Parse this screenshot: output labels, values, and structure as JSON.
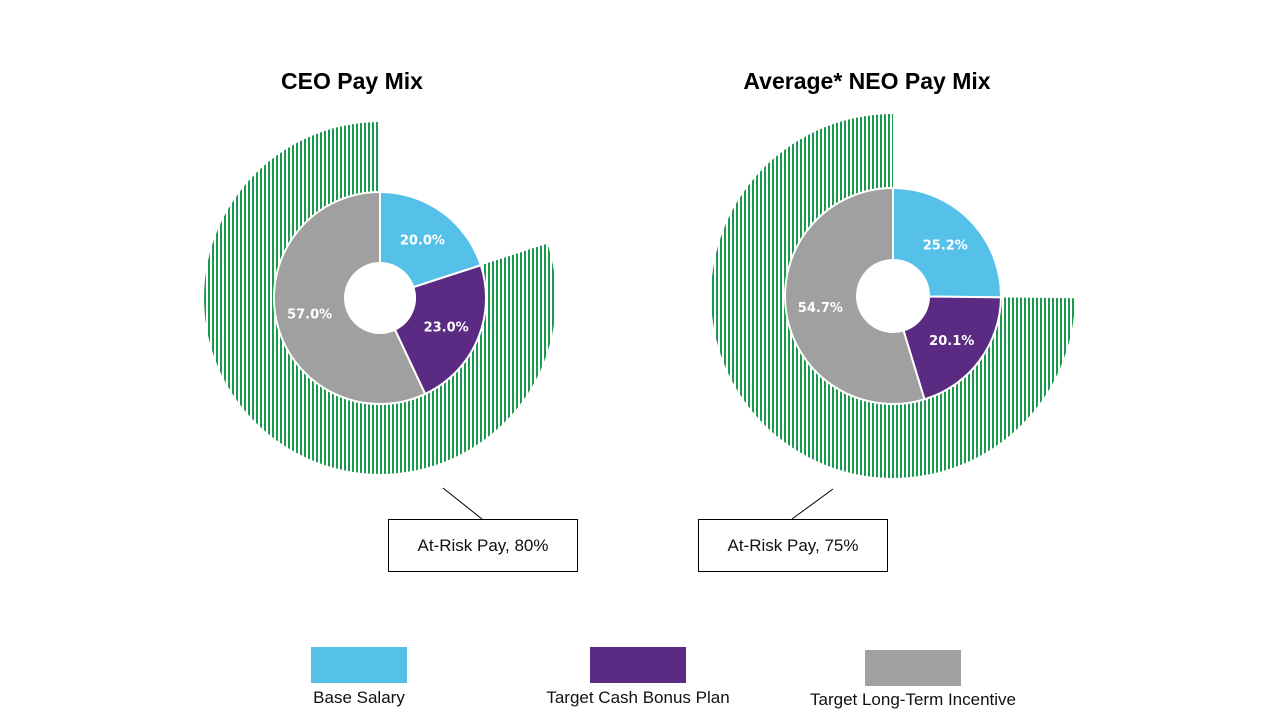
{
  "chart_data": [
    {
      "type": "pie",
      "title": "CEO Pay Mix",
      "categories": [
        "Base Salary",
        "Target Cash Bonus Plan",
        "Target Long-Term Incentive"
      ],
      "values": [
        20.0,
        23.0,
        57.0
      ],
      "labels": [
        "20.0%",
        "23.0%",
        "57.0%"
      ],
      "outer_ring": {
        "label": "At-Risk Pay, 80%",
        "value": 80
      }
    },
    {
      "type": "pie",
      "title": "Average* NEO Pay Mix",
      "categories": [
        "Base Salary",
        "Target Cash Bonus Plan",
        "Target Long-Term Incentive"
      ],
      "values": [
        25.2,
        20.1,
        54.7
      ],
      "labels": [
        "25.2%",
        "20.1%",
        "54.7%"
      ],
      "outer_ring": {
        "label": "At-Risk Pay, 75%",
        "value": 75
      }
    }
  ],
  "legend": [
    {
      "label": "Base Salary",
      "color": "#56C1E8"
    },
    {
      "label": "Target Cash Bonus Plan",
      "color": "#5B2A82"
    },
    {
      "label": "Target Long-Term Incentive",
      "color": "#A0A0A0"
    }
  ],
  "at_risk_color": "#1A9A4C",
  "legend_position": "bottom"
}
